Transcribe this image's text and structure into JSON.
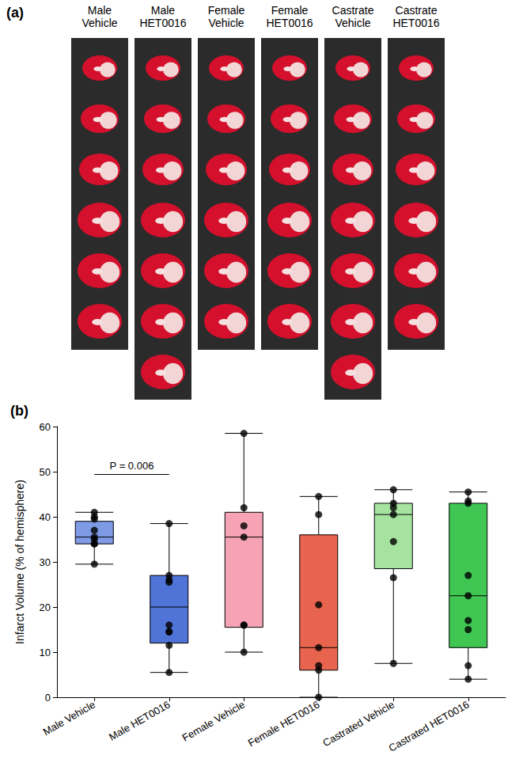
{
  "image_panel": {
    "label": "(a)",
    "columns": [
      {
        "title": "Male Vehicle",
        "slices": 6
      },
      {
        "title": "Male HET0016",
        "slices": 7
      },
      {
        "title": "Female Vehicle",
        "slices": 6
      },
      {
        "title": "Female HET0016",
        "slices": 6
      },
      {
        "title": "Castrate Vehicle",
        "slices": 7
      },
      {
        "title": "Castrate HET0016",
        "slices": 6
      }
    ]
  },
  "chart_data": {
    "type": "boxplot",
    "title": "(b)",
    "y_label": "Infarct Volume (% of hemisphere)",
    "categories": [
      "Male Vehicle",
      "Male HET0016",
      "Female Vehicle",
      "Female HET0016",
      "Castrated Vehicle",
      "Castrated HET0016"
    ],
    "colors": [
      "#7f9be6",
      "#4f73d6",
      "#f5a3b5",
      "#e8644e",
      "#a6e3a0",
      "#3fc653"
    ],
    "boxes": [
      [
        29.5,
        34,
        35.5,
        39,
        41
      ],
      [
        5.5,
        12,
        20,
        27,
        38.5
      ],
      [
        10,
        15.5,
        35.5,
        41,
        58.5
      ],
      [
        0,
        6,
        11,
        36,
        44.5
      ],
      [
        7.5,
        28.5,
        40.5,
        43,
        46
      ],
      [
        4,
        11,
        22.5,
        43,
        45.5
      ]
    ],
    "points": [
      [
        41,
        40,
        39.5,
        37,
        35.5,
        35,
        34,
        34,
        29.5
      ],
      [
        38.5,
        27,
        26,
        25.5,
        16,
        14.5,
        14.5,
        11.5,
        5.5
      ],
      [
        58.5,
        42,
        38,
        35.5,
        16,
        16,
        10
      ],
      [
        44.5,
        40.5,
        20.5,
        11,
        7,
        6,
        0
      ],
      [
        46,
        43,
        42,
        40.5,
        34.5,
        26.5,
        7.5
      ],
      [
        45.5,
        43.5,
        43,
        27,
        22.5,
        17,
        15,
        7,
        4
      ]
    ],
    "ylim": [
      0,
      60
    ],
    "yticks": [
      0,
      10,
      20,
      30,
      40,
      50,
      60
    ],
    "grid": false,
    "annotations": [
      {
        "text": "P = 0.006",
        "from": "Male Vehicle",
        "to": "Male HET0016",
        "y": 49.5
      }
    ]
  }
}
